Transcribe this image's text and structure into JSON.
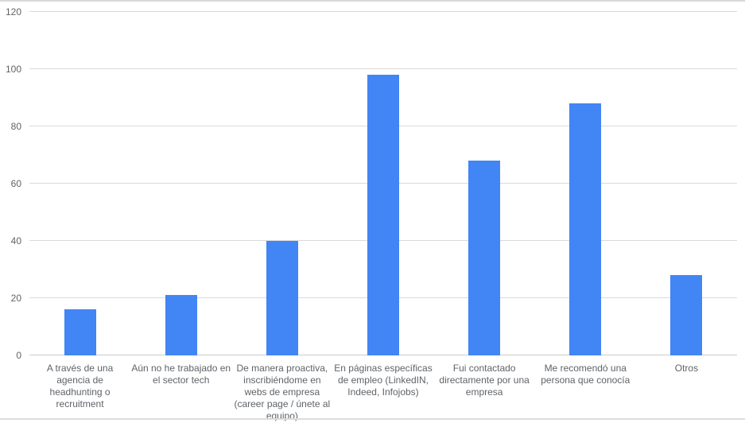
{
  "chart_data": {
    "type": "bar",
    "title": "",
    "xlabel": "",
    "ylabel": "",
    "categories": [
      "A través de una\nagencia de\nheadhunting o\nrecruitment",
      "Aún no he trabajado en\nel sector tech",
      "De manera proactiva,\ninscribiéndome en\nwebs de empresa\n(career page / únete al\nequipo)",
      "En páginas específicas\nde empleo (LinkedIN,\nIndeed, Infojobs)",
      "Fui contactado\ndirectamente por una\nempresa",
      "Me recomendó una\npersona que conocía",
      "Otros"
    ],
    "values": [
      16,
      21,
      40,
      98,
      68,
      88,
      28
    ],
    "yticks": [
      0,
      20,
      40,
      60,
      80,
      100,
      120
    ],
    "ylim": [
      0,
      120
    ],
    "grid": true,
    "legend": "none",
    "bar_color": "#4285f4"
  },
  "colors": {
    "bar": "#4285f4",
    "gridline": "#dadada",
    "baseline": "#cccccc",
    "axis_text": "#5f6368",
    "border_top": "#d8d8d8",
    "border_bottom": "#dcdcdc",
    "background": "#ffffff"
  }
}
